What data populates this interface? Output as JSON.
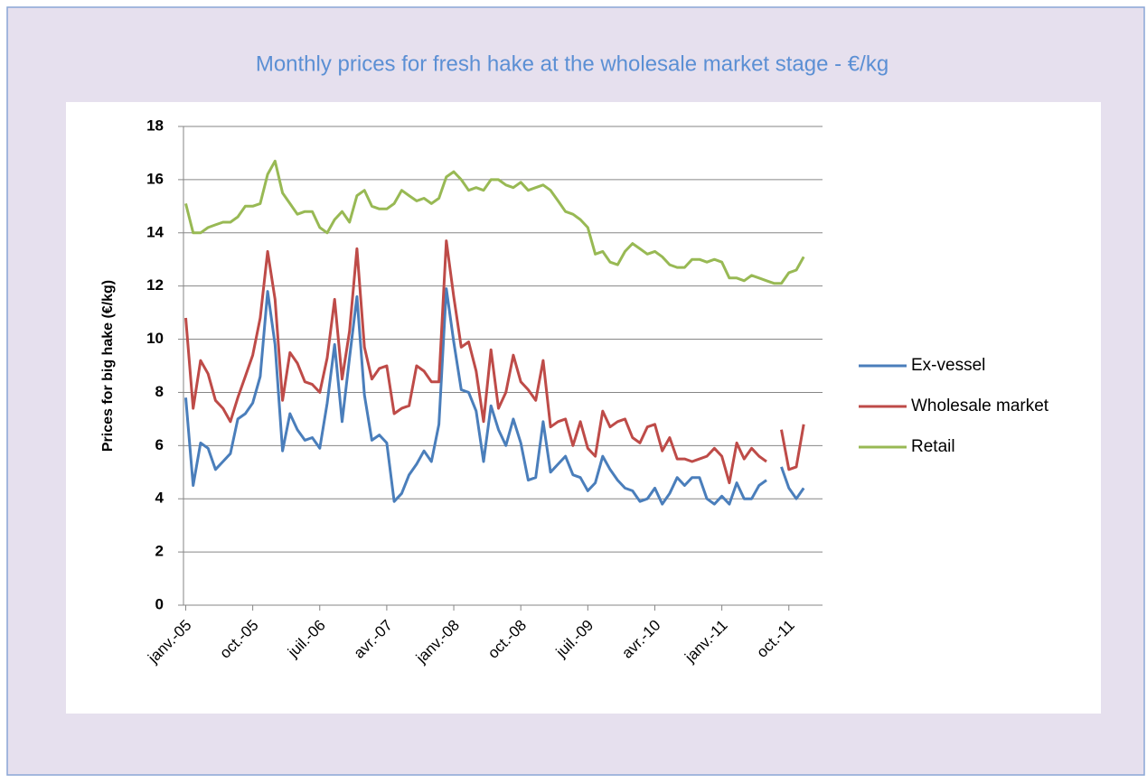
{
  "chart_data": {
    "type": "line",
    "title": "Monthly prices for fresh hake at the wholesale market stage - €/kg",
    "y_label": "Prices for big hake (€/kg)",
    "categories": [
      "janv.-05",
      null,
      null,
      null,
      null,
      null,
      null,
      null,
      null,
      "oct.-05",
      null,
      null,
      null,
      null,
      null,
      null,
      null,
      null,
      "juil.-06",
      null,
      null,
      null,
      null,
      null,
      null,
      null,
      null,
      "avr.-07",
      null,
      null,
      null,
      null,
      null,
      null,
      null,
      null,
      "janv.-08",
      null,
      null,
      null,
      null,
      null,
      null,
      null,
      null,
      "oct.-08",
      null,
      null,
      null,
      null,
      null,
      null,
      null,
      null,
      "juil.-09",
      null,
      null,
      null,
      null,
      null,
      null,
      null,
      null,
      "avr.-10",
      null,
      null,
      null,
      null,
      null,
      null,
      null,
      null,
      "janv.-11",
      null,
      null,
      null,
      null,
      null,
      null,
      null,
      null,
      "oct.-11",
      null,
      null
    ],
    "series": [
      {
        "name": "Ex-vessel",
        "color": "#4a7ebb",
        "values": [
          7.8,
          4.5,
          6.1,
          5.9,
          5.1,
          5.4,
          5.7,
          7.0,
          7.2,
          7.6,
          8.6,
          11.8,
          9.8,
          5.8,
          7.2,
          6.6,
          6.2,
          6.3,
          5.9,
          7.6,
          9.8,
          6.9,
          9.3,
          11.6,
          7.9,
          6.2,
          6.4,
          6.1,
          3.9,
          4.2,
          4.9,
          5.3,
          5.8,
          5.4,
          6.8,
          11.9,
          9.9,
          8.1,
          8.0,
          7.3,
          5.4,
          7.5,
          6.6,
          6.0,
          7.0,
          6.1,
          4.7,
          4.8,
          6.9,
          5.0,
          5.3,
          5.6,
          4.9,
          4.8,
          4.3,
          4.6,
          5.6,
          5.1,
          4.7,
          4.4,
          4.3,
          3.9,
          4.0,
          4.4,
          3.8,
          4.2,
          4.8,
          4.5,
          4.8,
          4.8,
          4.0,
          3.8,
          4.1,
          3.8,
          4.6,
          4.0,
          4.0,
          4.5,
          4.7,
          null,
          5.2,
          4.4,
          4.0,
          4.4
        ]
      },
      {
        "name": "Wholesale market",
        "color": "#be4b48",
        "values": [
          10.8,
          7.4,
          9.2,
          8.7,
          7.7,
          7.4,
          6.9,
          7.8,
          8.6,
          9.4,
          10.8,
          13.3,
          11.5,
          7.7,
          9.5,
          9.1,
          8.4,
          8.3,
          8.0,
          9.3,
          11.5,
          8.5,
          10.3,
          13.4,
          9.7,
          8.5,
          8.9,
          9.0,
          7.2,
          7.4,
          7.5,
          9.0,
          8.8,
          8.4,
          8.4,
          13.7,
          11.6,
          9.7,
          9.9,
          8.8,
          6.9,
          9.6,
          7.4,
          8.0,
          9.4,
          8.4,
          8.1,
          7.7,
          9.2,
          6.7,
          6.9,
          7.0,
          6.0,
          6.9,
          5.9,
          5.6,
          7.3,
          6.7,
          6.9,
          7.0,
          6.3,
          6.1,
          6.7,
          6.8,
          5.8,
          6.3,
          5.5,
          5.5,
          5.4,
          5.5,
          5.6,
          5.9,
          5.6,
          4.6,
          6.1,
          5.5,
          5.9,
          5.6,
          5.4,
          null,
          6.6,
          5.1,
          5.2,
          6.8
        ]
      },
      {
        "name": "Retail",
        "color": "#98b954",
        "values": [
          15.1,
          14.0,
          14.0,
          14.2,
          14.3,
          14.4,
          14.4,
          14.6,
          15.0,
          15.0,
          15.1,
          16.2,
          16.7,
          15.5,
          15.1,
          14.7,
          14.8,
          14.8,
          14.2,
          14.0,
          14.5,
          14.8,
          14.4,
          15.4,
          15.6,
          15.0,
          14.9,
          14.9,
          15.1,
          15.6,
          15.4,
          15.2,
          15.3,
          15.1,
          15.3,
          16.1,
          16.3,
          16.0,
          15.6,
          15.7,
          15.6,
          16.0,
          16.0,
          15.8,
          15.7,
          15.9,
          15.6,
          15.7,
          15.8,
          15.6,
          15.2,
          14.8,
          14.7,
          14.5,
          14.2,
          13.2,
          13.3,
          12.9,
          12.8,
          13.3,
          13.6,
          13.4,
          13.2,
          13.3,
          13.1,
          12.8,
          12.7,
          12.7,
          13.0,
          13.0,
          12.9,
          13.0,
          12.9,
          12.3,
          12.3,
          12.2,
          12.4,
          12.3,
          12.2,
          12.1,
          12.1,
          12.5,
          12.6,
          13.1
        ]
      }
    ],
    "ylim": [
      0,
      18
    ],
    "yticks": [
      0,
      2,
      4,
      6,
      8,
      10,
      12,
      14,
      16,
      18
    ],
    "grid": true,
    "legend": "right"
  }
}
